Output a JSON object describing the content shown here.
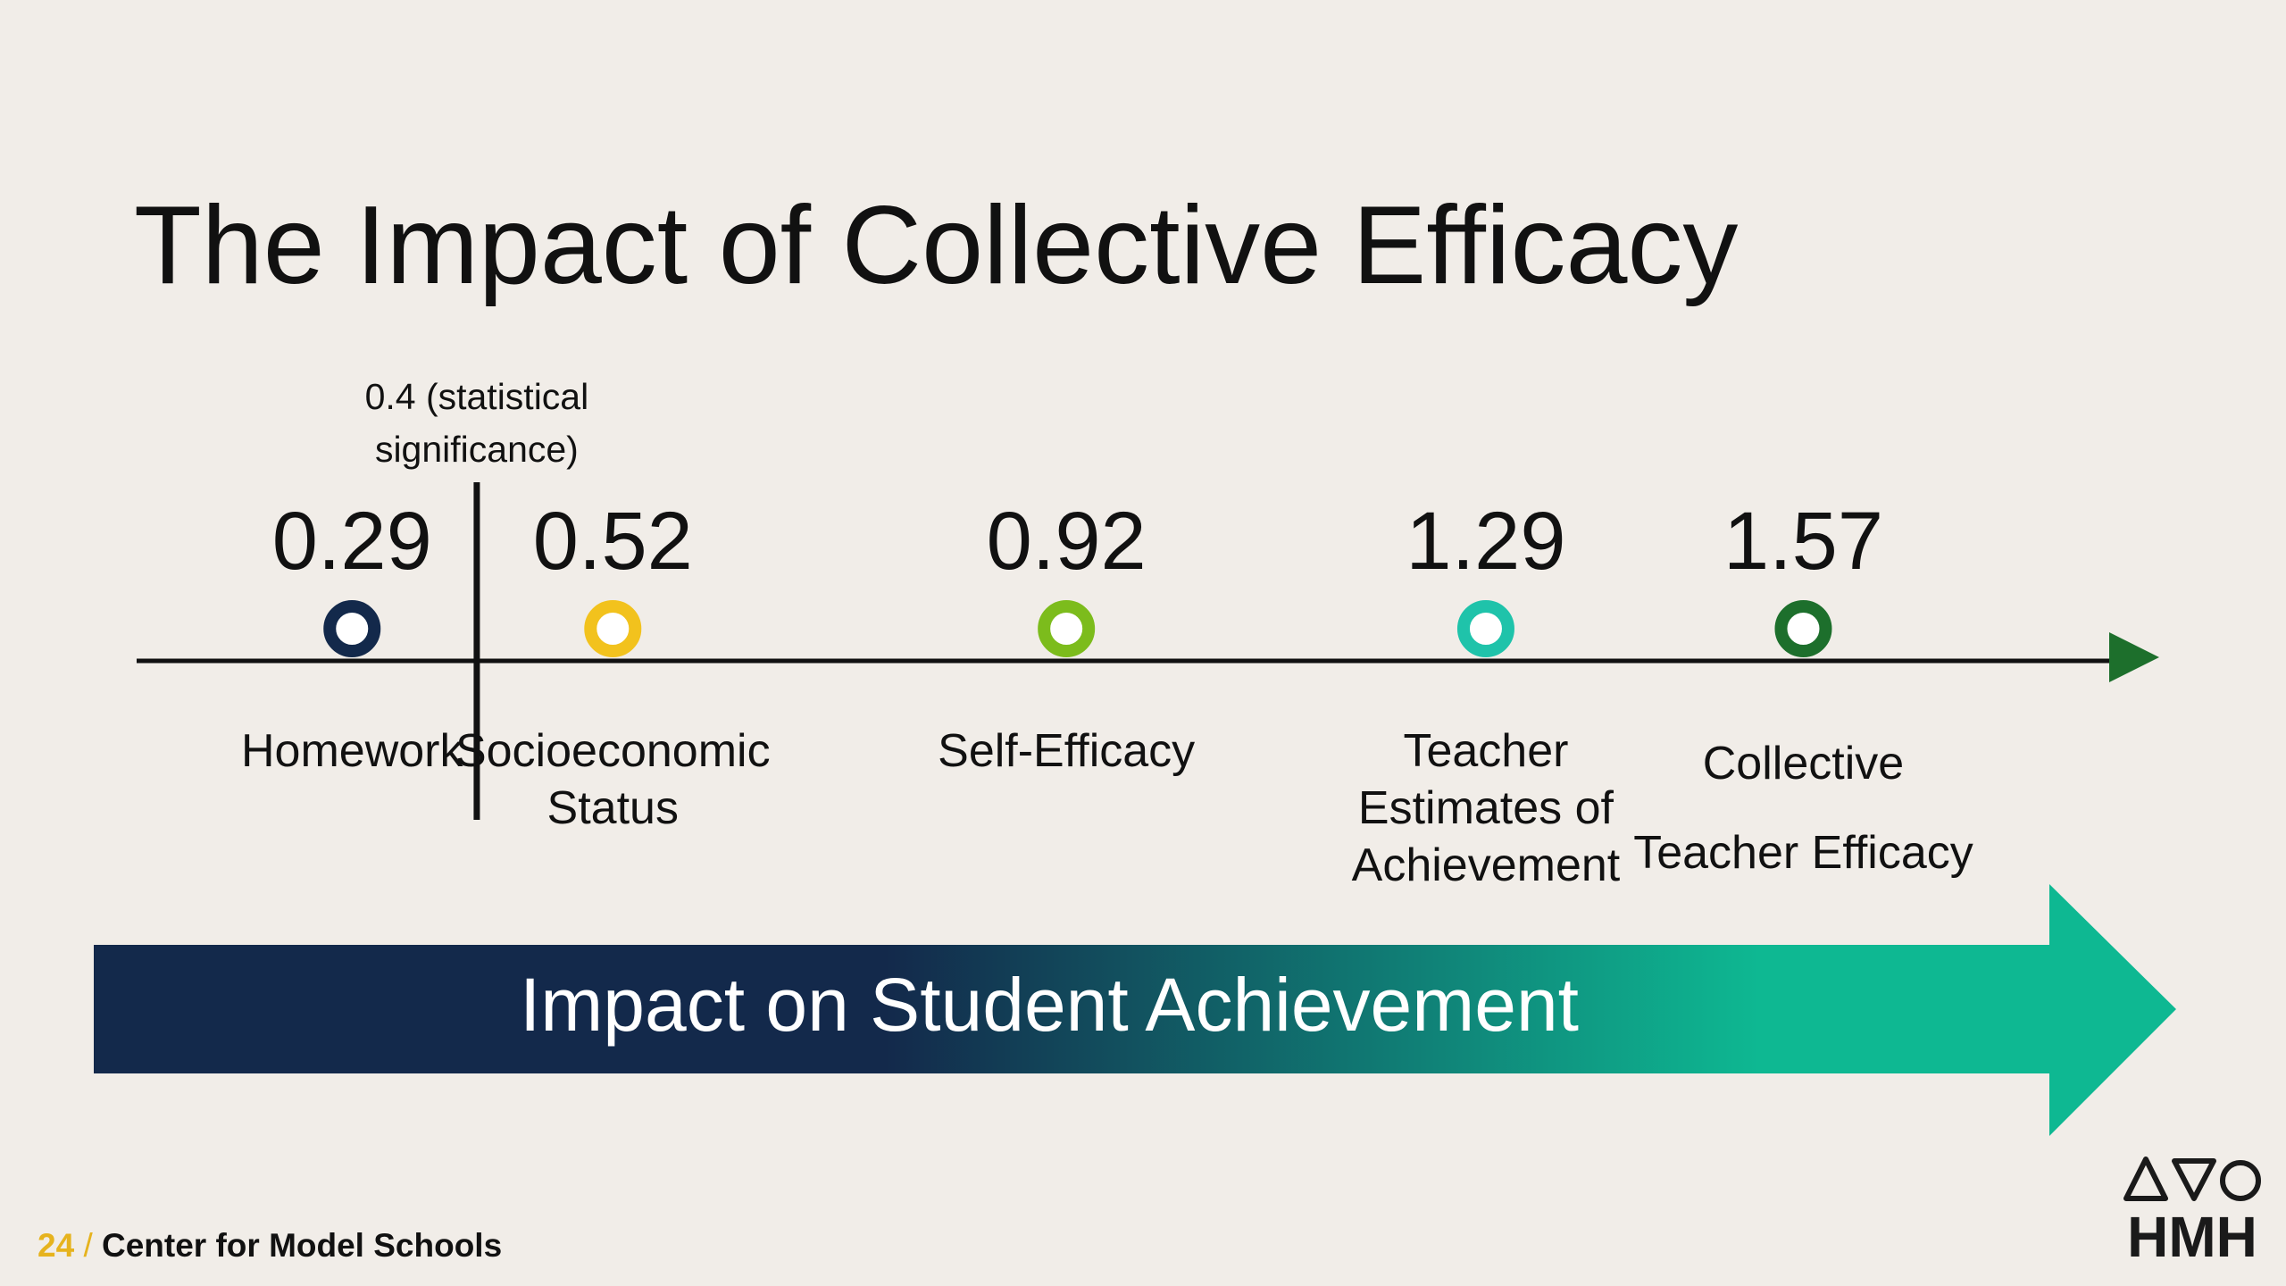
{
  "slide": {
    "title": "The Impact of Collective Efficacy",
    "banner": "Impact on Student Achievement",
    "footer": {
      "page_number": "24",
      "separator": "/",
      "org_name": "Center for Model Schools"
    },
    "logo": {
      "text": "HMH",
      "icon": "triangle-shield-circle-logo-icon",
      "color": "#1a1a1a"
    }
  },
  "chart_data": {
    "type": "scatter",
    "axis_range": [
      0.1,
      1.85
    ],
    "threshold": {
      "value": 0.4,
      "label_line1": "0.4 (statistical",
      "label_line2": "significance)"
    },
    "points": [
      {
        "value": 0.29,
        "value_label": "0.29",
        "name_lines": [
          "Homework"
        ],
        "color": "#13294b"
      },
      {
        "value": 0.52,
        "value_label": "0.52",
        "name_lines": [
          "Socioeconomic",
          "Status"
        ],
        "color": "#f2c21d"
      },
      {
        "value": 0.92,
        "value_label": "0.92",
        "name_lines": [
          "Self-Efficacy"
        ],
        "color": "#7cbc1c"
      },
      {
        "value": 1.29,
        "value_label": "1.29",
        "name_lines": [
          "Teacher",
          "Estimates of",
          "Achievement"
        ],
        "color": "#1fc3aa"
      },
      {
        "value": 1.57,
        "value_label": "1.57",
        "name_lines": [
          "Collective",
          "Teacher Efficacy"
        ],
        "color": "#1d6f2c"
      }
    ],
    "axis_arrow_color": "#1d6f2c",
    "banner_gradient": [
      "#13294b",
      "#0eb892"
    ]
  }
}
